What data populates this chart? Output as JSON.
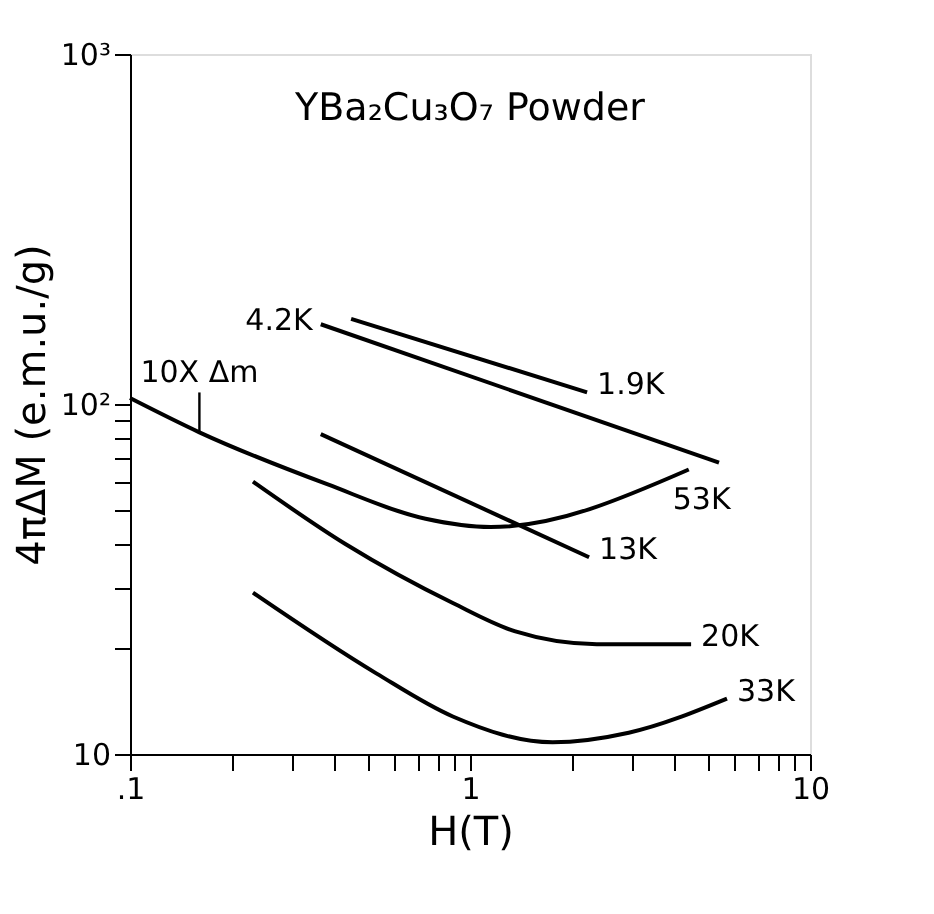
{
  "chart_data": {
    "type": "line",
    "title": "YBa₂Cu₃O₇ Powder",
    "xlabel": "H(T)",
    "ylabel": "4πΔM (e.m.u./g)",
    "log": "xy",
    "grid": false,
    "line_style": "solid",
    "marker": "none",
    "xlim": [
      0.1,
      10
    ],
    "ylim": [
      10,
      1000
    ],
    "xticks": [
      {
        "value": 0.1,
        "label": ".1"
      },
      {
        "value": 0.2,
        "label": null
      },
      {
        "value": 0.3,
        "label": null
      },
      {
        "value": 0.4,
        "label": null
      },
      {
        "value": 0.5,
        "label": null
      },
      {
        "value": 0.6,
        "label": null
      },
      {
        "value": 0.7,
        "label": null
      },
      {
        "value": 0.8,
        "label": null
      },
      {
        "value": 0.9,
        "label": null
      },
      1,
      {
        "value": 2,
        "label": null
      },
      {
        "value": 3,
        "label": null
      },
      {
        "value": 4,
        "label": null
      },
      {
        "value": 5,
        "label": null
      },
      {
        "value": 6,
        "label": null
      },
      {
        "value": 7,
        "label": null
      },
      {
        "value": 8,
        "label": null
      },
      {
        "value": 9,
        "label": null
      },
      10
    ],
    "yticks": [
      10,
      {
        "value": 20,
        "label": null
      },
      {
        "value": 30,
        "label": null
      },
      {
        "value": 40,
        "label": null
      },
      {
        "value": 50,
        "label": null
      },
      {
        "value": 60,
        "label": null
      },
      {
        "value": 70,
        "label": null
      },
      {
        "value": 80,
        "label": null
      },
      {
        "value": 90,
        "label": null
      },
      {
        "value": 100,
        "label": "10²"
      },
      {
        "value": 1000,
        "label": "10³"
      }
    ],
    "series": [
      {
        "color": "#000000",
        "x": [
          0.364,
          5.4
        ],
        "values": [
          169,
          68
        ]
      },
      {
        "color": "#000000",
        "x": [
          0.447,
          2.21
        ],
        "values": [
          175,
          108
        ]
      },
      {
        "color": "#000000",
        "x": [
          0.1,
          0.16,
          0.38,
          0.74,
          1.15,
          4.4
        ],
        "values": [
          104,
          83,
          59,
          47,
          44.5,
          65
        ]
      },
      {
        "color": "#000000",
        "x": [
          0.364,
          2.24
        ],
        "values": [
          82,
          36.5
        ]
      },
      {
        "color": "#000000",
        "x": [
          0.23,
          0.43,
          0.89,
          1.36,
          2.36,
          4.47
        ],
        "values": [
          60,
          39.8,
          27,
          22.4,
          20.6,
          20.6
        ]
      },
      {
        "color": "#000000",
        "x": [
          0.23,
          0.53,
          0.89,
          1.75,
          2.93,
          5.7
        ],
        "values": [
          28.9,
          17,
          12.8,
          10.8,
          11.5,
          14.4
        ]
      }
    ],
    "annotations": [
      {
        "text": "4.2K",
        "x": 0.364,
        "y": 169
      },
      {
        "text": "1.9K",
        "x": 2.21,
        "y": 108
      },
      {
        "text": "53K",
        "x": 4.4,
        "y": 65
      },
      {
        "text": "13K",
        "x": 2.24,
        "y": 36.5
      },
      {
        "text": "20K",
        "x": 4.47,
        "y": 20.6
      },
      {
        "text": "33K",
        "x": 5.7,
        "y": 14.4
      },
      {
        "text": "10X Δm",
        "x": 0.16,
        "y": 83
      }
    ]
  }
}
